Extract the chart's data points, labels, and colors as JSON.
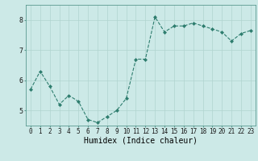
{
  "x": [
    0,
    1,
    2,
    3,
    4,
    5,
    6,
    7,
    8,
    9,
    10,
    11,
    12,
    13,
    14,
    15,
    16,
    17,
    18,
    19,
    20,
    21,
    22,
    23
  ],
  "y": [
    5.7,
    6.3,
    5.8,
    5.2,
    5.5,
    5.3,
    4.7,
    4.6,
    4.8,
    5.0,
    5.4,
    6.7,
    6.7,
    8.1,
    7.6,
    7.8,
    7.8,
    7.9,
    7.8,
    7.7,
    7.6,
    7.3,
    7.55,
    7.65
  ],
  "line_color": "#2e7d6e",
  "marker": "D",
  "marker_size": 2.0,
  "bg_color": "#cce9e7",
  "grid_color": "#b0d4d0",
  "xlabel": "Humidex (Indice chaleur)",
  "ylim": [
    4.5,
    8.5
  ],
  "xlim": [
    -0.5,
    23.5
  ],
  "yticks": [
    5,
    6,
    7,
    8
  ],
  "xticks": [
    0,
    1,
    2,
    3,
    4,
    5,
    6,
    7,
    8,
    9,
    10,
    11,
    12,
    13,
    14,
    15,
    16,
    17,
    18,
    19,
    20,
    21,
    22,
    23
  ],
  "tick_fontsize": 5.5,
  "label_fontsize": 7.0
}
